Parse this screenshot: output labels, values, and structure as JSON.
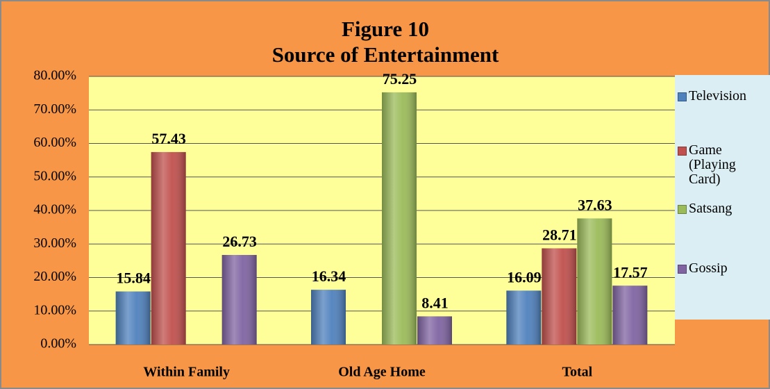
{
  "chart_data": {
    "type": "bar",
    "title": "Figure 10",
    "subtitle": "Source of Entertainment",
    "categories": [
      "Within Family",
      "Old Age Home",
      "Total"
    ],
    "series": [
      {
        "name": "Television",
        "color": "#4f81bd",
        "values": [
          15.84,
          16.34,
          16.09
        ]
      },
      {
        "name": "Game (Playing Card)",
        "color": "#c0504d",
        "values": [
          57.43,
          null,
          28.71
        ]
      },
      {
        "name": "Satsang",
        "color": "#9bbb59",
        "values": [
          null,
          75.25,
          37.63
        ]
      },
      {
        "name": "Gossip",
        "color": "#8064a2",
        "values": [
          26.73,
          8.41,
          17.57
        ]
      }
    ],
    "ylim": [
      0,
      80
    ],
    "yticks": [
      {
        "value": 0,
        "label": "0.00%"
      },
      {
        "value": 10,
        "label": "10.00%"
      },
      {
        "value": 20,
        "label": "20.00%"
      },
      {
        "value": 30,
        "label": "30.00%"
      },
      {
        "value": 40,
        "label": "40.00%"
      },
      {
        "value": 50,
        "label": "50.00%"
      },
      {
        "value": 60,
        "label": "60.00%"
      },
      {
        "value": 70,
        "label": "70.00%"
      },
      {
        "value": 80,
        "label": "80.00%"
      }
    ],
    "grid": true,
    "legend": "right"
  }
}
